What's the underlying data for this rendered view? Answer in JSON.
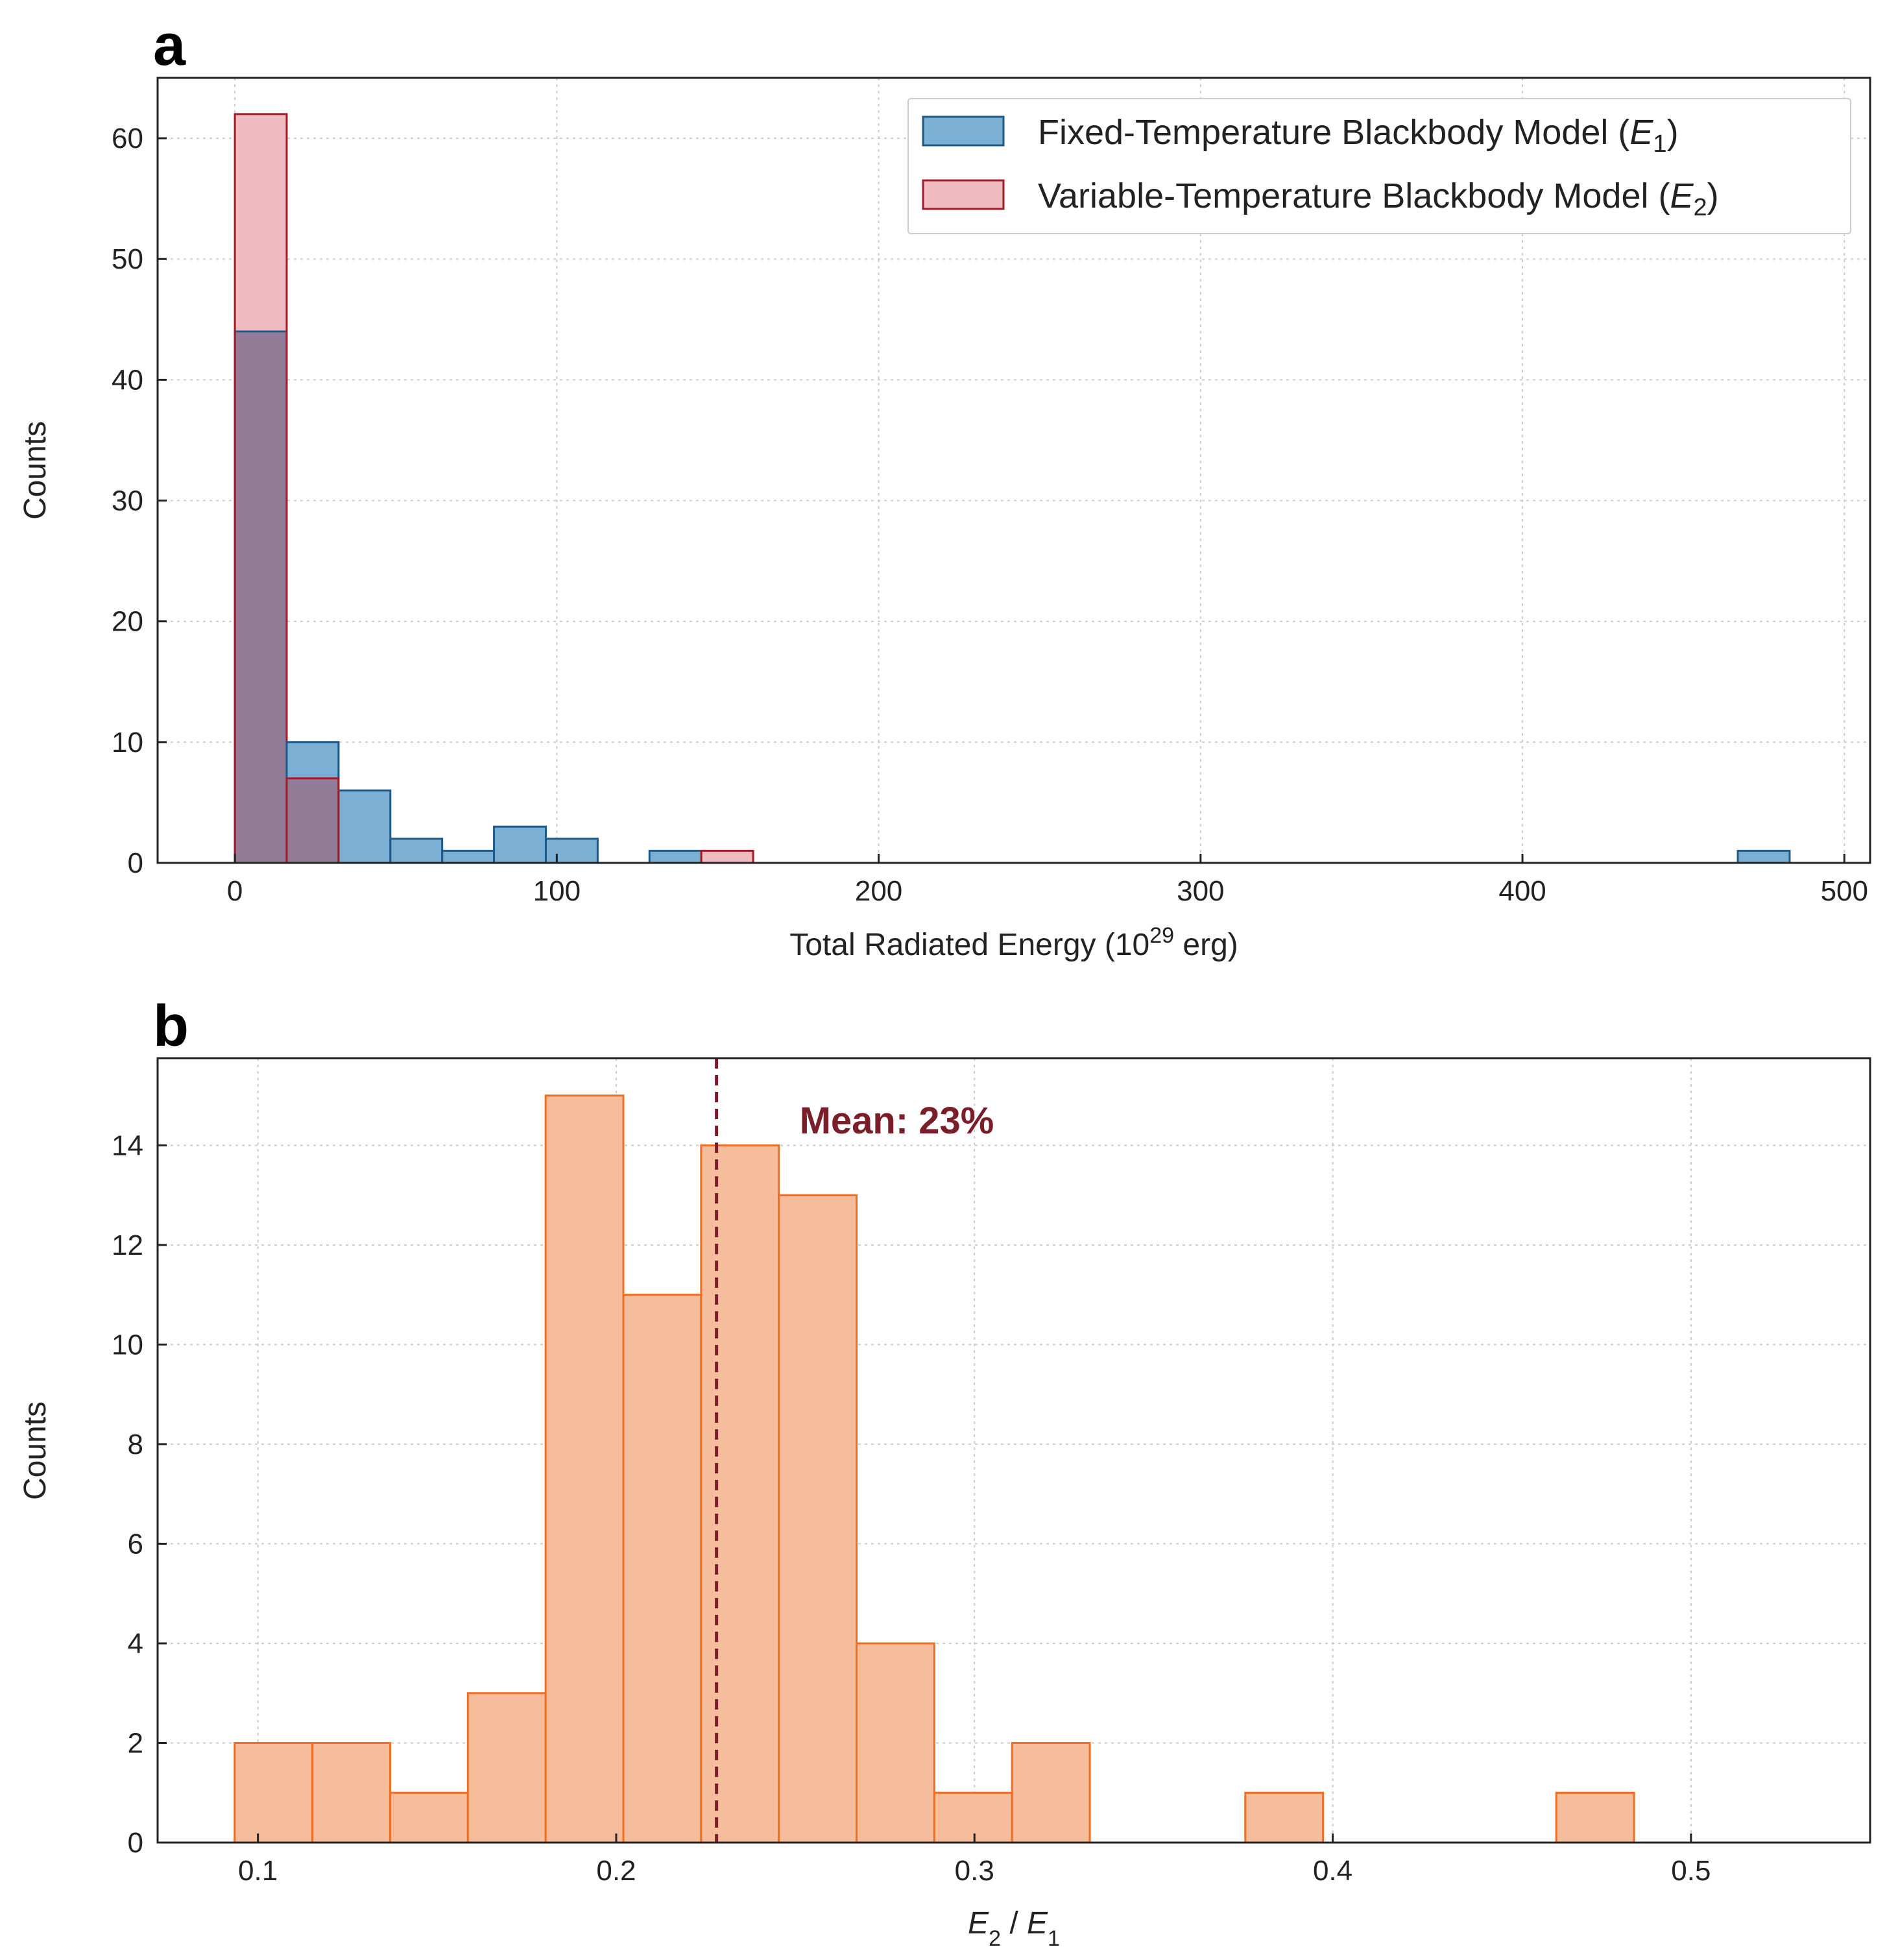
{
  "chart_data": [
    {
      "panel": "a",
      "type": "bar",
      "title": "",
      "xlabel": "Total Radiated Energy (10",
      "xlabel_sup": "29",
      "xlabel_tail": " erg)",
      "ylabel": "Counts",
      "xlim": [
        -24,
        508
      ],
      "ylim": [
        0,
        65
      ],
      "xticks": [
        0,
        100,
        200,
        300,
        400,
        500
      ],
      "yticks": [
        0,
        10,
        20,
        30,
        40,
        50,
        60
      ],
      "grid": true,
      "legend_position": "top-right",
      "series": [
        {
          "name": "Fixed-Temperature Blackbody Model (E1)",
          "legend_text": "Fixed-Temperature Blackbody Model (",
          "legend_var": "E",
          "legend_sub": "1",
          "legend_close": ")",
          "fill": "#7bb0d4",
          "stroke": "#1c5a8a",
          "bins": [
            {
              "x0": 0,
              "x1": 16.1,
              "count": 44
            },
            {
              "x0": 16.1,
              "x1": 32.2,
              "count": 10
            },
            {
              "x0": 32.2,
              "x1": 48.3,
              "count": 6
            },
            {
              "x0": 48.3,
              "x1": 64.4,
              "count": 2
            },
            {
              "x0": 64.4,
              "x1": 80.5,
              "count": 1
            },
            {
              "x0": 80.5,
              "x1": 96.6,
              "count": 3
            },
            {
              "x0": 96.6,
              "x1": 112.7,
              "count": 2
            },
            {
              "x0": 128.8,
              "x1": 144.9,
              "count": 1
            },
            {
              "x0": 466.9,
              "x1": 483.0,
              "count": 1
            }
          ]
        },
        {
          "name": "Variable-Temperature Blackbody Model (E2)",
          "legend_text": "Variable-Temperature Blackbody Model (",
          "legend_var": "E",
          "legend_sub": "2",
          "legend_close": ")",
          "fill": "#f1bcc1",
          "stroke": "#a01c28",
          "bins": [
            {
              "x0": 0,
              "x1": 16.1,
              "count": 62
            },
            {
              "x0": 16.1,
              "x1": 32.2,
              "count": 7
            },
            {
              "x0": 144.9,
              "x1": 161.0,
              "count": 1
            }
          ]
        }
      ],
      "overlap_fill": "#927c97"
    },
    {
      "panel": "b",
      "type": "bar",
      "title": "",
      "xlabel_var1": "E",
      "xlabel_sub1": "2",
      "xlabel_mid": " / ",
      "xlabel_var2": "E",
      "xlabel_sub2": "1",
      "ylabel": "Counts",
      "xlim": [
        0.072,
        0.55
      ],
      "ylim": [
        0,
        15.75
      ],
      "xticks": [
        0.1,
        0.2,
        0.3,
        0.4,
        0.5
      ],
      "yticks": [
        0,
        2,
        4,
        6,
        8,
        10,
        12,
        14
      ],
      "grid": true,
      "fill": "#f5bd9c",
      "stroke": "#ee6e23",
      "bins": [
        {
          "x0": 0.0935,
          "x1": 0.1152,
          "count": 2
        },
        {
          "x0": 0.1152,
          "x1": 0.1369,
          "count": 2
        },
        {
          "x0": 0.1369,
          "x1": 0.1586,
          "count": 1
        },
        {
          "x0": 0.1586,
          "x1": 0.1803,
          "count": 3
        },
        {
          "x0": 0.1803,
          "x1": 0.202,
          "count": 15
        },
        {
          "x0": 0.202,
          "x1": 0.2237,
          "count": 11
        },
        {
          "x0": 0.2237,
          "x1": 0.2454,
          "count": 14
        },
        {
          "x0": 0.2454,
          "x1": 0.2671,
          "count": 13
        },
        {
          "x0": 0.2671,
          "x1": 0.2888,
          "count": 4
        },
        {
          "x0": 0.2888,
          "x1": 0.3105,
          "count": 1
        },
        {
          "x0": 0.3105,
          "x1": 0.3322,
          "count": 2
        },
        {
          "x0": 0.3756,
          "x1": 0.3973,
          "count": 1
        },
        {
          "x0": 0.4624,
          "x1": 0.4841,
          "count": 1
        }
      ],
      "mean_value": 0.228,
      "mean_color": "#7a1e2a",
      "annotation": "Mean: 23%"
    }
  ]
}
